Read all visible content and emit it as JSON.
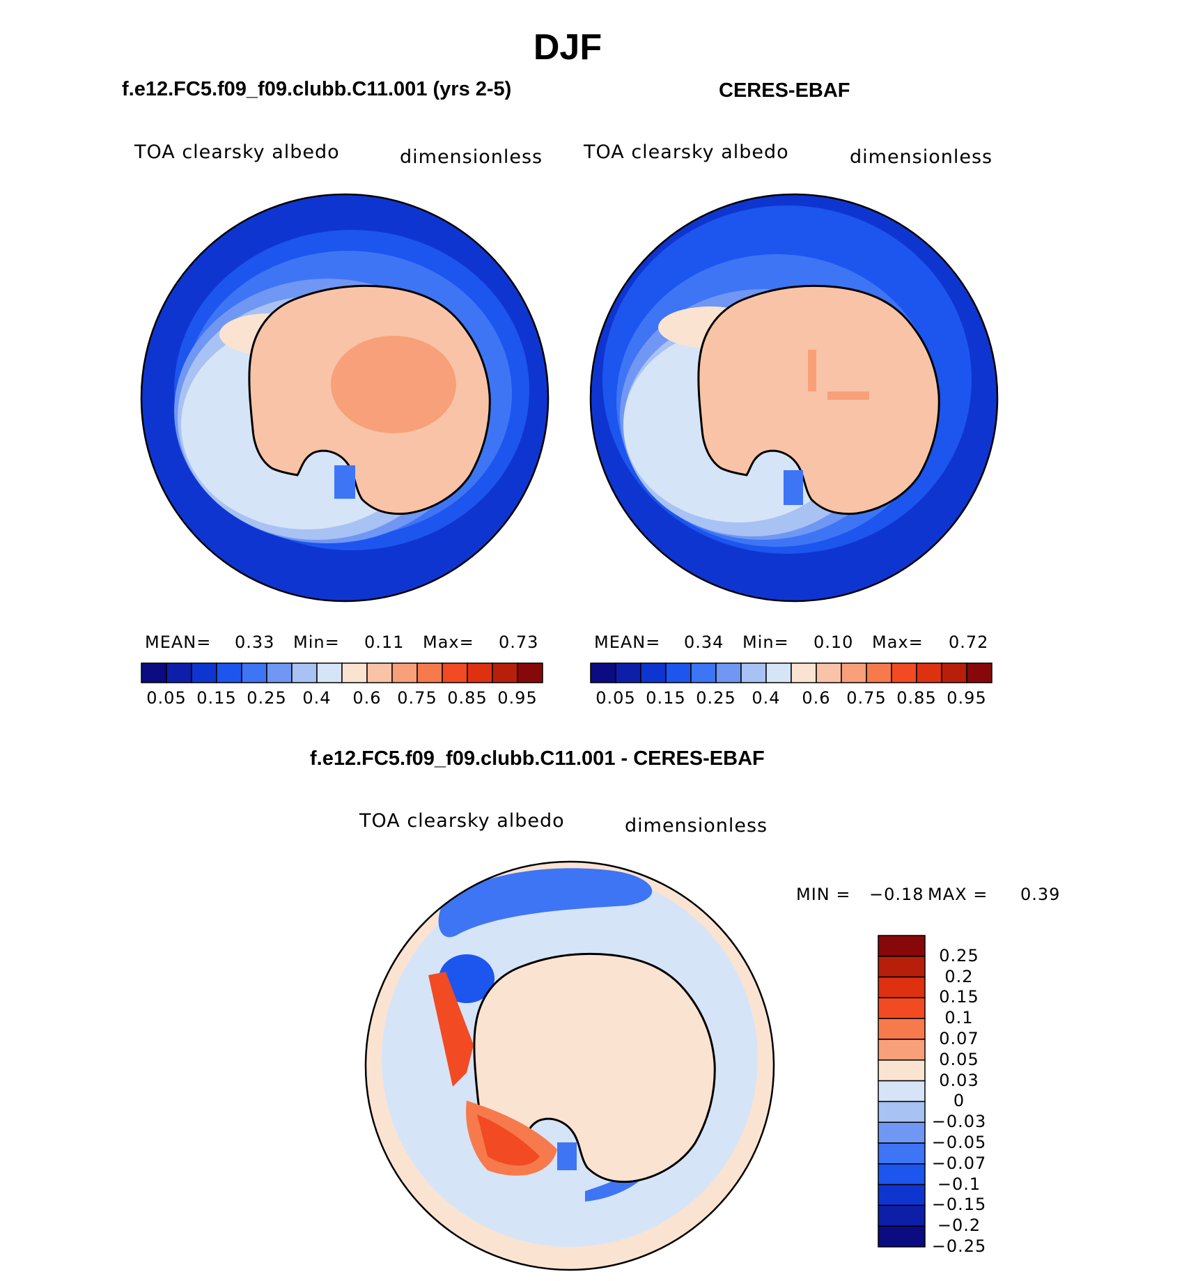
{
  "page": {
    "title": "DJF"
  },
  "panels": [
    {
      "title": "f.e12.FC5.f09_f09.clubb.C11.001 (yrs 2-5)",
      "variable": "TOA clearsky albedo",
      "units": "dimensionless",
      "stats": {
        "mean_label": "MEAN=",
        "mean": "0.33",
        "min_label": "Min=",
        "min": "0.11",
        "max_label": "Max=",
        "max": "0.73"
      }
    },
    {
      "title": "CERES-EBAF",
      "variable": "TOA clearsky albedo",
      "units": "dimensionless",
      "stats": {
        "mean_label": "MEAN=",
        "mean": "0.34",
        "min_label": "Min=",
        "min": "0.10",
        "max_label": "Max=",
        "max": "0.72"
      }
    }
  ],
  "diff_panel": {
    "title": "f.e12.FC5.f09_f09.clubb.C11.001 - CERES-EBAF",
    "variable": "TOA clearsky albedo",
    "units": "dimensionless",
    "stats": {
      "min_label": "MIN =",
      "min": "−0.18",
      "max_label": "MAX =",
      "max": "0.39"
    }
  },
  "colorbar_main": {
    "colors": [
      "#0b0b82",
      "#0d1fa8",
      "#0f35d1",
      "#1d55ef",
      "#3d75f5",
      "#7097f3",
      "#a8c2f4",
      "#d6e4f8",
      "#fbe3d2",
      "#f9c3a7",
      "#f8a07a",
      "#f67a4c",
      "#f24a22",
      "#de3110",
      "#b71f0a",
      "#870808"
    ],
    "ticks": [
      "0.05",
      "0.15",
      "0.25",
      "0.4",
      "0.6",
      "0.75",
      "0.85",
      "0.95"
    ]
  },
  "colorbar_diff": {
    "colors": [
      "#870808",
      "#b71f0a",
      "#de3110",
      "#f24a22",
      "#f67a4c",
      "#f8a07a",
      "#fbe3d2",
      "#d6e4f8",
      "#a8c2f4",
      "#7097f3",
      "#3d75f5",
      "#1d55ef",
      "#0f35d1",
      "#0d1fa8",
      "#0b0b82"
    ],
    "ticks": [
      "0.25",
      "0.2",
      "0.15",
      "0.1",
      "0.07",
      "0.05",
      "0.03",
      "0",
      "−0.03",
      "−0.05",
      "−0.07",
      "−0.1",
      "−0.15",
      "−0.2",
      "−0.25"
    ]
  },
  "map_colors": {
    "ocean_deep": "#0f35d1",
    "ocean_mid": "#1d55ef",
    "ocean_light": "#3d75f5",
    "seaice_1": "#7097f3",
    "seaice_2": "#a8c2f4",
    "seaice_3": "#d6e4f8",
    "ice_edge": "#fbe3d2",
    "continent": "#f9c3a7",
    "plateau": "#f8a07a",
    "diff_neutral_pos": "#fbe3d2",
    "diff_neutral_neg": "#d6e4f8",
    "diff_strong_pos": "#f24a22",
    "diff_mid_pos": "#f67a4c",
    "diff_neg": "#3d75f5",
    "diff_strong_neg": "#1d55ef"
  }
}
